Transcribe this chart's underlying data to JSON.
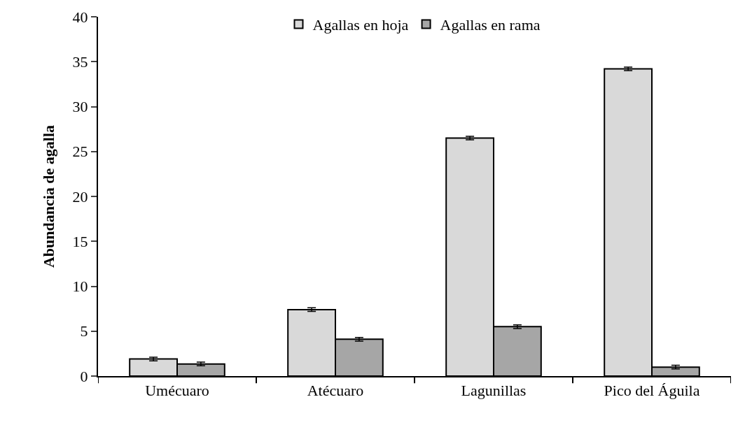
{
  "chart_data": {
    "type": "bar",
    "ylabel": "Abundancia de agalla",
    "categories": [
      "Umécuaro",
      "Atécuaro",
      "Lagunillas",
      "Pico del Águila"
    ],
    "series": [
      {
        "name": "Agallas en hoja",
        "color": "#d9d9d9",
        "values": [
          1.9,
          7.4,
          26.5,
          34.2
        ],
        "errors": [
          0.2,
          0.2,
          0.2,
          0.2
        ]
      },
      {
        "name": "Agallas en rama",
        "color": "#a6a6a6",
        "values": [
          1.35,
          4.1,
          5.5,
          1.0
        ],
        "errors": [
          0.2,
          0.2,
          0.2,
          0.2
        ]
      }
    ],
    "ylim": [
      0,
      40
    ],
    "yticks": [
      0,
      5,
      10,
      15,
      20,
      25,
      30,
      35,
      40
    ],
    "grid": false,
    "legend": "top"
  }
}
